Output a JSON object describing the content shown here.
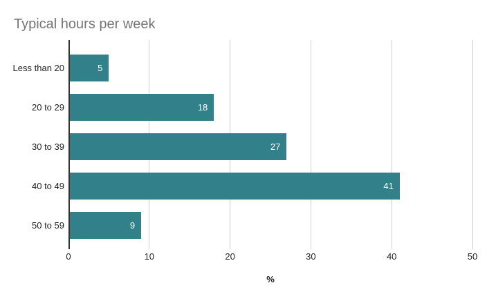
{
  "chart_data": {
    "type": "bar",
    "orientation": "horizontal",
    "title": "Typical hours per week",
    "categories": [
      "Less than 20",
      "20 to 29",
      "30 to 39",
      "40 to 49",
      "50 to 59"
    ],
    "values": [
      5,
      18,
      27,
      41,
      9
    ],
    "xlabel": "%",
    "ylabel": "",
    "xlim": [
      0,
      50
    ],
    "xticks": [
      0,
      10,
      20,
      30,
      40,
      50
    ],
    "grid": "vertical-gridlines-on",
    "legend": "none",
    "value_labels": "inside-end-white",
    "colors": {
      "bar": "#31808a",
      "value_label": "#ffffff",
      "title": "#757575",
      "gridline": "#cccccc",
      "axis_line": "#333333",
      "text": "#222222",
      "background": "#ffffff"
    }
  }
}
